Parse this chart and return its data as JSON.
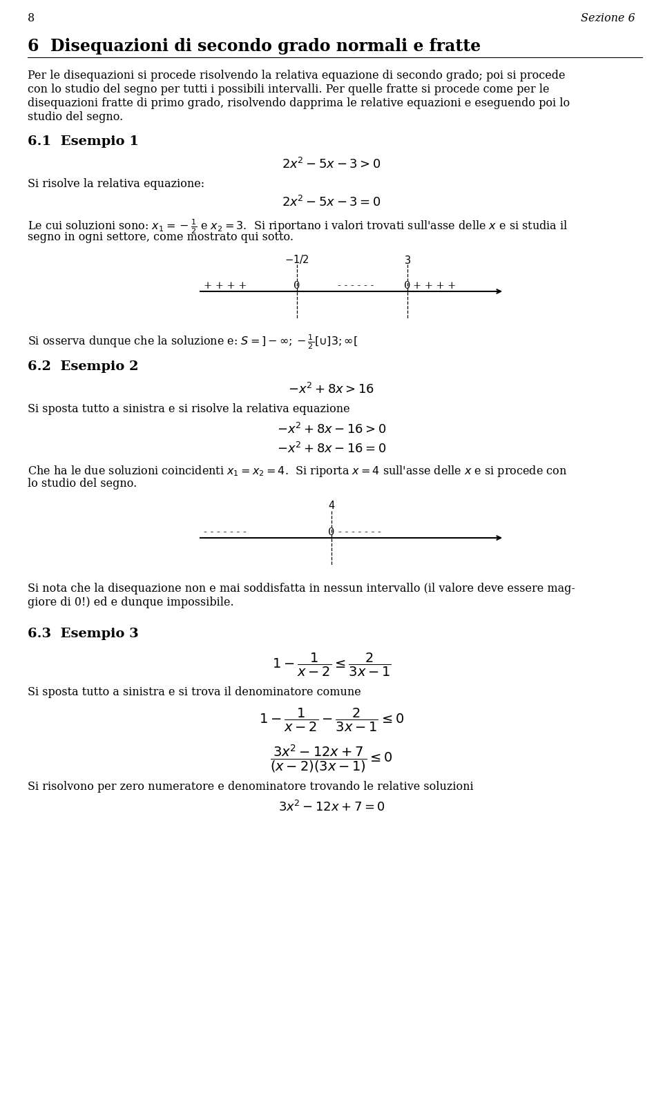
{
  "page_number": "8",
  "section_header": "Sezione 6",
  "chapter_title": "6  Disequazioni di secondo grado normali e fratte",
  "bg_color": "#ffffff",
  "text_color": "#000000",
  "body_fs": 11.5,
  "heading1_fs": 17,
  "heading2_fs": 14,
  "math_fs": 13,
  "math_big_fs": 14
}
